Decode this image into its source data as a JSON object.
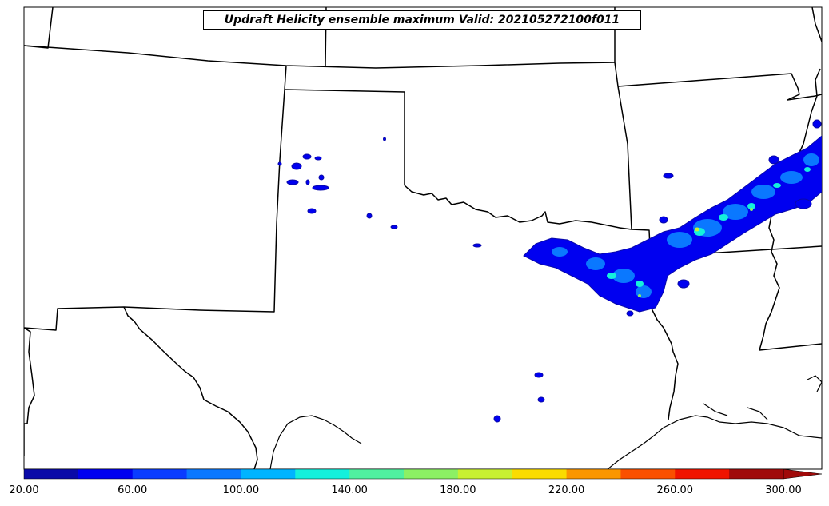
{
  "title": "Updraft Helicity ensemble maximum Valid: 202105272100f011",
  "colorbar": {
    "min": 20,
    "max": 300,
    "step": 20,
    "extend": "max",
    "colors": [
      "#0a0aa8",
      "#0000f0",
      "#0a3cff",
      "#0a78ff",
      "#00b4ff",
      "#14f0dc",
      "#50f0a0",
      "#8cf064",
      "#c8f032",
      "#fadc00",
      "#fa9600",
      "#fa5000",
      "#f01400",
      "#a00a0a",
      "#a00a0a"
    ],
    "tick_labels": [
      "20.00",
      "60.00",
      "100.00",
      "140.00",
      "180.00",
      "220.00",
      "260.00",
      "300.00"
    ]
  },
  "map": {
    "projection": "regional, southern Plains of the United States",
    "boundaries": "state and national borders, coastlines",
    "field": "updraft helicity ensemble maximum"
  }
}
